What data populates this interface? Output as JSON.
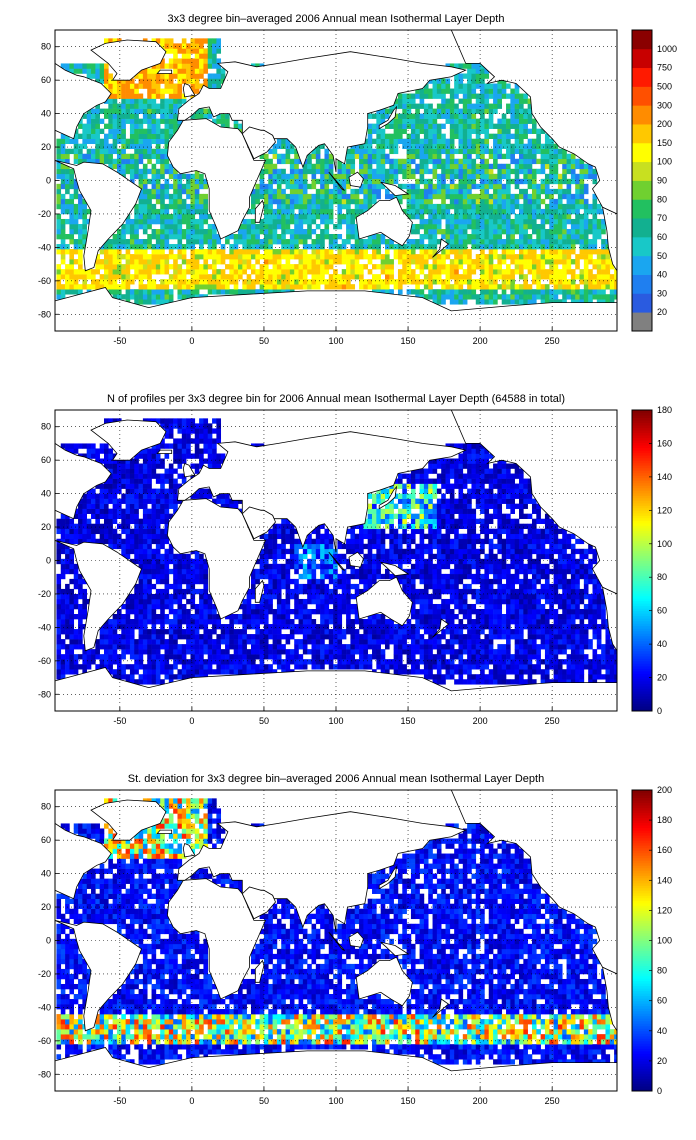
{
  "chart_data": [
    {
      "type": "heatmap",
      "title": "3x3 degree bin–averaged 2006 Annual mean Isothermal Layer Depth",
      "x_ticks": [
        "-50",
        "0",
        "50",
        "100",
        "150",
        "200",
        "250"
      ],
      "y_ticks": [
        "80",
        "60",
        "40",
        "20",
        "0",
        "-20",
        "-40",
        "-60",
        "-80"
      ],
      "xlim": [
        -95,
        295
      ],
      "ylim": [
        -90,
        90
      ],
      "grid": true,
      "colorbar": {
        "type": "discrete",
        "labels": [
          "20",
          "30",
          "40",
          "50",
          "60",
          "70",
          "80",
          "90",
          "100",
          "150",
          "200",
          "300",
          "500",
          "750",
          "1000"
        ],
        "colors": [
          "#808080",
          "#2a5be0",
          "#1f7ff0",
          "#1aa6f0",
          "#18c8c8",
          "#12b090",
          "#22c060",
          "#70d030",
          "#c8e020",
          "#ffff00",
          "#ffc800",
          "#ff8c00",
          "#ff5000",
          "#ff1a00",
          "#c80000",
          "#8a0000"
        ]
      },
      "cells": []
    },
    {
      "type": "heatmap",
      "title": "N of profiles per 3x3 degree bin for 2006 Annual mean Isothermal Layer Depth  (64588 in total)",
      "x_ticks": [
        "-50",
        "0",
        "50",
        "100",
        "150",
        "200",
        "250"
      ],
      "y_ticks": [
        "80",
        "60",
        "40",
        "20",
        "0",
        "-20",
        "-40",
        "-60",
        "-80"
      ],
      "xlim": [
        -95,
        295
      ],
      "ylim": [
        -90,
        90
      ],
      "grid": true,
      "colorbar": {
        "type": "continuous",
        "range": [
          0,
          180
        ],
        "ticks": [
          "0",
          "20",
          "40",
          "60",
          "80",
          "100",
          "120",
          "140",
          "160",
          "180"
        ]
      },
      "cells": []
    },
    {
      "type": "heatmap",
      "title": "St. deviation for 3x3 degree bin–averaged 2006 Annual mean Isothermal Layer Depth",
      "x_ticks": [
        "-50",
        "0",
        "50",
        "100",
        "150",
        "200",
        "250"
      ],
      "y_ticks": [
        "80",
        "60",
        "40",
        "20",
        "0",
        "-20",
        "-40",
        "-60",
        "-80"
      ],
      "xlim": [
        -95,
        295
      ],
      "ylim": [
        -90,
        90
      ],
      "grid": true,
      "colorbar": {
        "type": "continuous",
        "range": [
          0,
          200
        ],
        "ticks": [
          "0",
          "20",
          "40",
          "60",
          "80",
          "100",
          "120",
          "140",
          "160",
          "180",
          "200"
        ]
      },
      "cells": []
    }
  ]
}
